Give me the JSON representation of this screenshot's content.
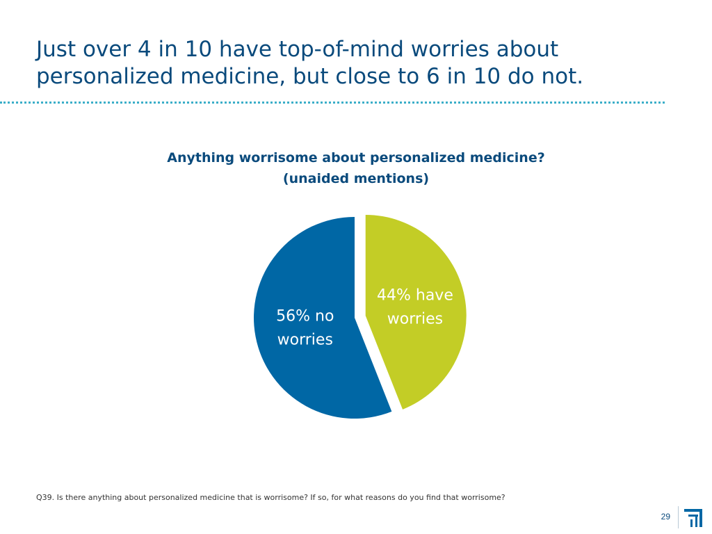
{
  "slide": {
    "title": "Just over 4 in 10 have top-of-mind worries about personalized medicine, but close to 6 in 10 do not.",
    "footnote": "Q39. Is there anything about personalized medicine that is worrisome? If so, for what reasons do you find that worrisome?",
    "page_number": "29"
  },
  "chart_data": {
    "type": "pie",
    "title": "Anything worrisome about personalized medicine?",
    "subtitle": "(unaided mentions)",
    "slices": [
      {
        "label": "44% have worries",
        "label_lines": [
          "44% have",
          "worries"
        ],
        "value": 44,
        "color": "#c3cd26",
        "exploded": true
      },
      {
        "label": "56% no worries",
        "label_lines": [
          "56% no",
          "worries"
        ],
        "value": 56,
        "color": "#0067a5",
        "exploded": false
      }
    ],
    "start": "12 o'clock",
    "direction": "clockwise"
  },
  "colors": {
    "title": "#0a4a7c",
    "rule": "#3aaec8",
    "worries": "#c3cd26",
    "no_worries": "#0067a5"
  },
  "icons": {
    "logo": "company-logo-icon"
  }
}
